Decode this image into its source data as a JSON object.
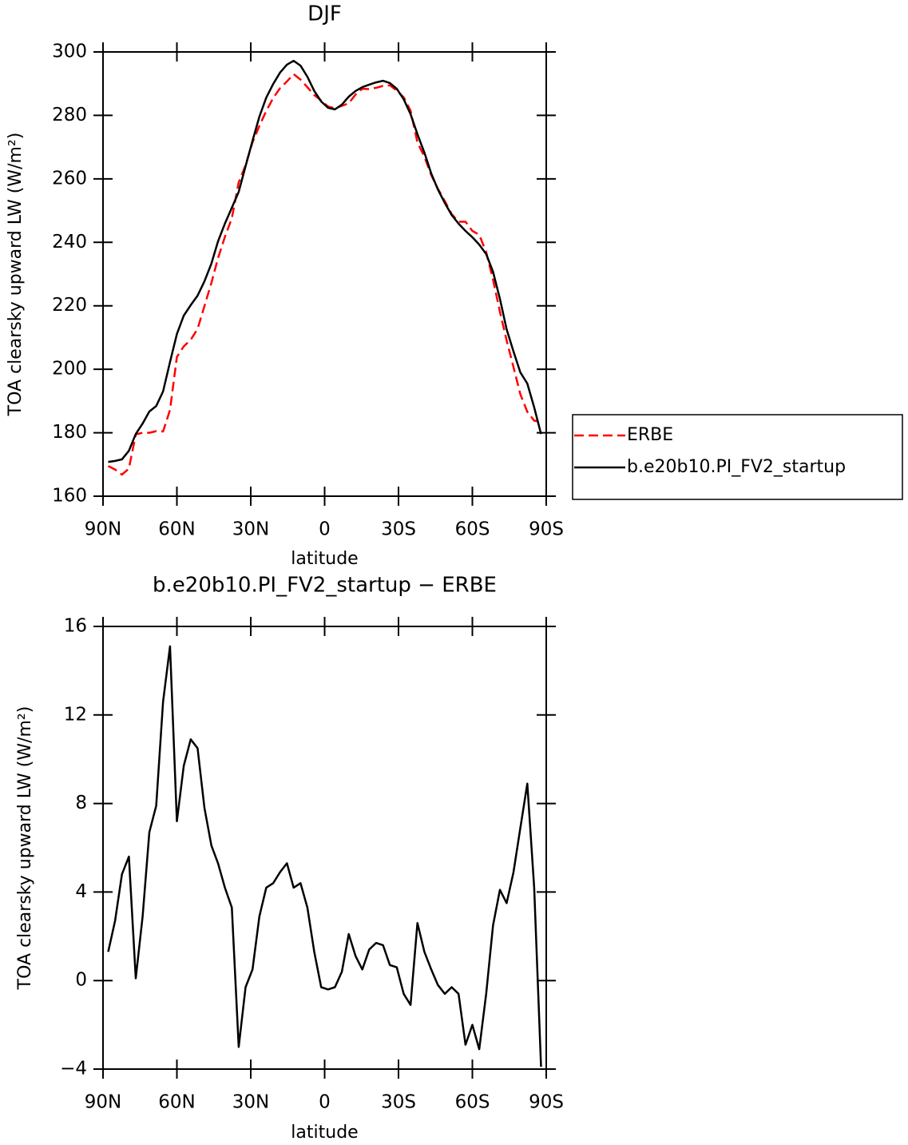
{
  "chart_data": [
    {
      "type": "line",
      "title": "DJF",
      "x_label": "latitude",
      "y_label": "TOA clearsky upward LW (W/m²)",
      "x": [
        87.9,
        85.1,
        82.3,
        79.5,
        76.7,
        73.9,
        71.2,
        68.4,
        65.6,
        62.8,
        60.0,
        57.2,
        54.4,
        51.6,
        48.8,
        46.0,
        43.3,
        40.5,
        37.7,
        34.9,
        32.1,
        29.3,
        26.5,
        23.7,
        20.9,
        18.1,
        15.3,
        12.6,
        9.8,
        7.0,
        4.2,
        1.4,
        -1.4,
        -4.2,
        -7.0,
        -9.8,
        -12.6,
        -15.3,
        -18.1,
        -20.9,
        -23.7,
        -26.5,
        -29.3,
        -32.1,
        -34.9,
        -37.7,
        -40.5,
        -43.3,
        -46.0,
        -48.8,
        -51.6,
        -54.4,
        -57.2,
        -60.0,
        -62.8,
        -65.6,
        -68.4,
        -71.2,
        -73.9,
        -76.7,
        -79.5,
        -82.3,
        -85.1,
        -87.9
      ],
      "series": [
        {
          "name": "ERBE",
          "color": "#ff0000",
          "line_style": "dashed",
          "values": [
            169.5,
            168.4,
            166.8,
            168.7,
            179.5,
            180.0,
            180.0,
            180.5,
            180.4,
            187.2,
            203.9,
            207.2,
            209.3,
            212.7,
            219.9,
            227.2,
            235.0,
            241.7,
            247.6,
            258.9,
            264.3,
            271.5,
            276.7,
            281.4,
            285.5,
            288.6,
            290.7,
            293.0,
            291.3,
            288.9,
            286.4,
            284.7,
            282.8,
            282.2,
            283.0,
            283.8,
            286.6,
            288.4,
            288.3,
            288.7,
            289.3,
            289.5,
            287.8,
            285.7,
            281.5,
            271.5,
            267.0,
            261.2,
            256.9,
            253.0,
            248.9,
            246.5,
            246.5,
            243.6,
            242.4,
            236.9,
            228.2,
            218.1,
            209.1,
            200.7,
            192.1,
            186.6,
            183.8,
            183.5
          ]
        },
        {
          "name": "b.e20b10.PI_FV2_startup",
          "color": "#000000",
          "line_style": "solid",
          "values": [
            170.8,
            171.1,
            171.6,
            174.3,
            179.6,
            182.9,
            186.7,
            188.4,
            193.0,
            202.3,
            211.1,
            216.9,
            220.2,
            223.2,
            227.7,
            233.3,
            240.3,
            245.9,
            250.9,
            255.9,
            264.0,
            272.0,
            279.6,
            285.6,
            289.9,
            293.5,
            296.0,
            297.2,
            295.7,
            292.2,
            287.7,
            284.4,
            282.4,
            281.9,
            283.4,
            285.9,
            287.7,
            288.9,
            289.7,
            290.4,
            290.9,
            290.2,
            288.4,
            285.1,
            280.4,
            274.1,
            268.3,
            261.7,
            256.7,
            252.4,
            248.6,
            245.9,
            243.6,
            241.6,
            239.3,
            236.3,
            230.7,
            222.2,
            212.6,
            205.6,
            199.0,
            195.5,
            188.0,
            179.6
          ]
        }
      ],
      "xlim": [
        90,
        -90
      ],
      "xticks": [
        {
          "value": 90,
          "label": "90N"
        },
        {
          "value": 60,
          "label": "60N"
        },
        {
          "value": 30,
          "label": "30N"
        },
        0,
        {
          "value": -30,
          "label": "30S"
        },
        {
          "value": -60,
          "label": "60S"
        },
        {
          "value": -90,
          "label": "90S"
        }
      ],
      "ylim": [
        160,
        300
      ],
      "yticks": [
        160,
        180,
        200,
        220,
        240,
        260,
        280,
        300
      ],
      "legend": "right"
    },
    {
      "type": "line",
      "title": "b.e20b10.PI_FV2_startup − ERBE",
      "x_label": "latitude",
      "y_label": "TOA clearsky upward LW (W/m²)",
      "x": [
        87.9,
        85.1,
        82.3,
        79.5,
        76.7,
        73.9,
        71.2,
        68.4,
        65.6,
        62.8,
        60.0,
        57.2,
        54.4,
        51.6,
        48.8,
        46.0,
        43.3,
        40.5,
        37.7,
        34.9,
        32.1,
        29.3,
        26.5,
        23.7,
        20.9,
        18.1,
        15.3,
        12.6,
        9.8,
        7.0,
        4.2,
        1.4,
        -1.4,
        -4.2,
        -7.0,
        -9.8,
        -12.6,
        -15.3,
        -18.1,
        -20.9,
        -23.7,
        -26.5,
        -29.3,
        -32.1,
        -34.9,
        -37.7,
        -40.5,
        -43.3,
        -46.0,
        -48.8,
        -51.6,
        -54.4,
        -57.2,
        -60.0,
        -62.8,
        -65.6,
        -68.4,
        -71.2,
        -73.9,
        -76.7,
        -79.5,
        -82.3,
        -85.1,
        -87.9
      ],
      "values": [
        1.3,
        2.7,
        4.8,
        5.6,
        0.1,
        2.9,
        6.7,
        7.9,
        12.6,
        15.1,
        7.2,
        9.7,
        10.9,
        10.5,
        7.8,
        6.1,
        5.3,
        4.2,
        3.3,
        -3.0,
        -0.3,
        0.5,
        2.9,
        4.2,
        4.4,
        4.9,
        5.3,
        4.2,
        4.4,
        3.3,
        1.3,
        -0.3,
        -0.4,
        -0.3,
        0.4,
        2.1,
        1.1,
        0.5,
        1.4,
        1.7,
        1.6,
        0.7,
        0.6,
        -0.6,
        -1.1,
        2.6,
        1.3,
        0.5,
        -0.2,
        -0.6,
        -0.3,
        -0.6,
        -2.9,
        -2.0,
        -3.1,
        -0.6,
        2.5,
        4.1,
        3.5,
        4.9,
        6.9,
        8.9,
        4.2,
        -3.9
      ],
      "color": "#000000",
      "line_style": "solid",
      "xlim": [
        90,
        -90
      ],
      "xticks": [
        {
          "value": 90,
          "label": "90N"
        },
        {
          "value": 60,
          "label": "60N"
        },
        {
          "value": 30,
          "label": "30N"
        },
        0,
        {
          "value": -30,
          "label": "30S"
        },
        {
          "value": -60,
          "label": "60S"
        },
        {
          "value": -90,
          "label": "90S"
        }
      ],
      "ylim": [
        -4,
        16
      ],
      "yticks": [
        {
          "value": -4,
          "label": "−4"
        },
        0,
        4,
        8,
        12,
        16
      ]
    }
  ]
}
